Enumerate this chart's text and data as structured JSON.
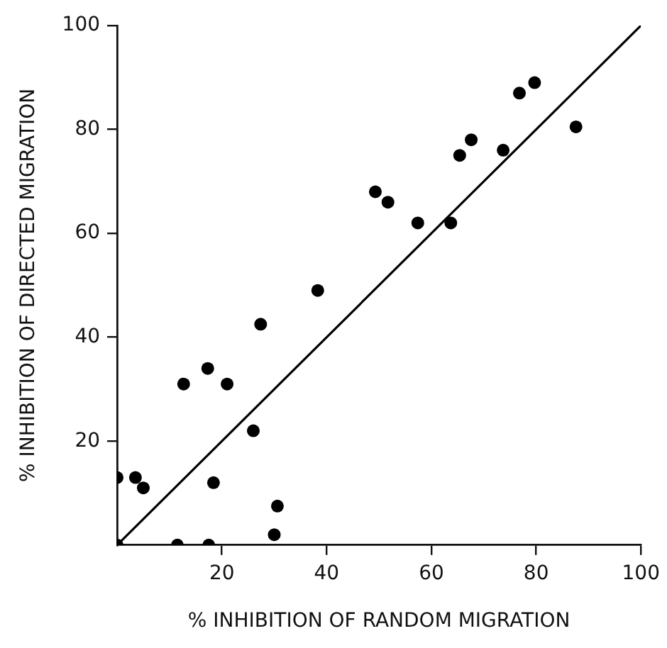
{
  "chart_data": {
    "type": "scatter",
    "xlabel": "% INHIBITION OF RANDOM MIGRATION",
    "ylabel": "% INHIBITION OF DIRECTED MIGRATION",
    "xlim": [
      0,
      100
    ],
    "xticks": [
      20,
      40,
      60,
      80,
      100
    ],
    "ylim": [
      0,
      100
    ],
    "yticks": [
      20,
      40,
      60,
      80,
      100
    ],
    "grid": false,
    "legend": false,
    "marker": "circle",
    "series": [
      {
        "type": "scatter",
        "color": "#000000",
        "x": [
          0,
          3.5,
          5,
          0,
          11.5,
          17.5,
          12.7,
          17.3,
          21,
          18.4,
          26,
          27.4,
          38.3,
          30.6,
          30,
          49.3,
          51.7,
          57.4,
          63.7,
          65.4,
          67.6,
          73.7,
          76.8,
          79.7,
          87.6
        ],
        "values": [
          13,
          13,
          11,
          0,
          0,
          0,
          31,
          34,
          31,
          12,
          22,
          42.5,
          49,
          7.5,
          2,
          68,
          66,
          62,
          62,
          75,
          78,
          76,
          87,
          89,
          80.5
        ]
      },
      {
        "type": "line",
        "color": "#000000",
        "line_style": "solid",
        "marker": "none",
        "x": [
          0,
          100
        ],
        "values": [
          0,
          100
        ]
      }
    ]
  }
}
